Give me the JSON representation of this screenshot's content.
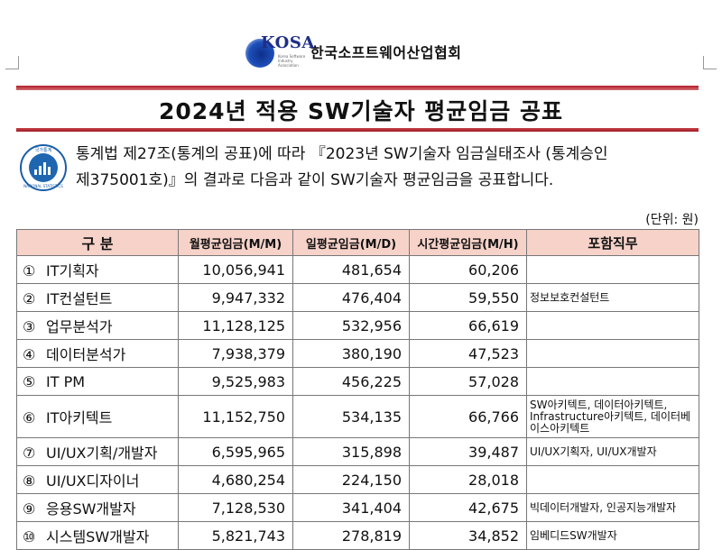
{
  "org": {
    "logo_text": "KOSA",
    "logo_sub": "Korea Software Industry Association",
    "name": "한국소프트웨어산업협회"
  },
  "title": "2024년 적용 SW기술자 평균임금 공표",
  "stat_logo": {
    "top": "국가통계",
    "bottom": "NATIONAL STATISTICS"
  },
  "intro": {
    "line1": "통계법 제27조(통계의 공표)에 따라 『2023년 SW기술자 임금실태조사 (통계승인",
    "line2": "제375001호)』의 결과로 다음과 같이 SW기술자 평균임금을 공표합니다."
  },
  "unit": "(단위: 원)",
  "table": {
    "headers": {
      "category": "구 분",
      "monthly": "월평균임금(M/M)",
      "daily": "일평균임금(M/D)",
      "hourly": "시간평균임금(M/H)",
      "roles": "포함직무"
    },
    "rows": [
      {
        "no": "①",
        "name": "IT기획자",
        "monthly": "10,056,941",
        "daily": "481,654",
        "hourly": "60,206",
        "roles": ""
      },
      {
        "no": "②",
        "name": "IT컨설턴트",
        "monthly": "9,947,332",
        "daily": "476,404",
        "hourly": "59,550",
        "roles": "정보보호컨설턴트"
      },
      {
        "no": "③",
        "name": "업무분석가",
        "monthly": "11,128,125",
        "daily": "532,956",
        "hourly": "66,619",
        "roles": ""
      },
      {
        "no": "④",
        "name": "데이터분석가",
        "monthly": "7,938,379",
        "daily": "380,190",
        "hourly": "47,523",
        "roles": ""
      },
      {
        "no": "⑤",
        "name": "IT PM",
        "monthly": "9,525,983",
        "daily": "456,225",
        "hourly": "57,028",
        "roles": ""
      },
      {
        "no": "⑥",
        "name": "IT아키텍트",
        "monthly": "11,152,750",
        "daily": "534,135",
        "hourly": "66,766",
        "roles": "SW아키텍트, 데이터아키텍트, Infrastructure아키텍트, 데이터베이스아키텍트"
      },
      {
        "no": "⑦",
        "name": "UI/UX기획/개발자",
        "monthly": "6,595,965",
        "daily": "315,898",
        "hourly": "39,487",
        "roles": "UI/UX기획자, UI/UX개발자"
      },
      {
        "no": "⑧",
        "name": "UI/UX디자이너",
        "monthly": "4,680,254",
        "daily": "224,150",
        "hourly": "28,018",
        "roles": ""
      },
      {
        "no": "⑨",
        "name": "응용SW개발자",
        "monthly": "7,128,530",
        "daily": "341,404",
        "hourly": "42,675",
        "roles": "빅데이터개발자, 인공지능개발자"
      },
      {
        "no": "⑩",
        "name": "시스템SW개발자",
        "monthly": "5,821,743",
        "daily": "278,819",
        "hourly": "34,852",
        "roles": "임베디드SW개발자"
      }
    ]
  }
}
